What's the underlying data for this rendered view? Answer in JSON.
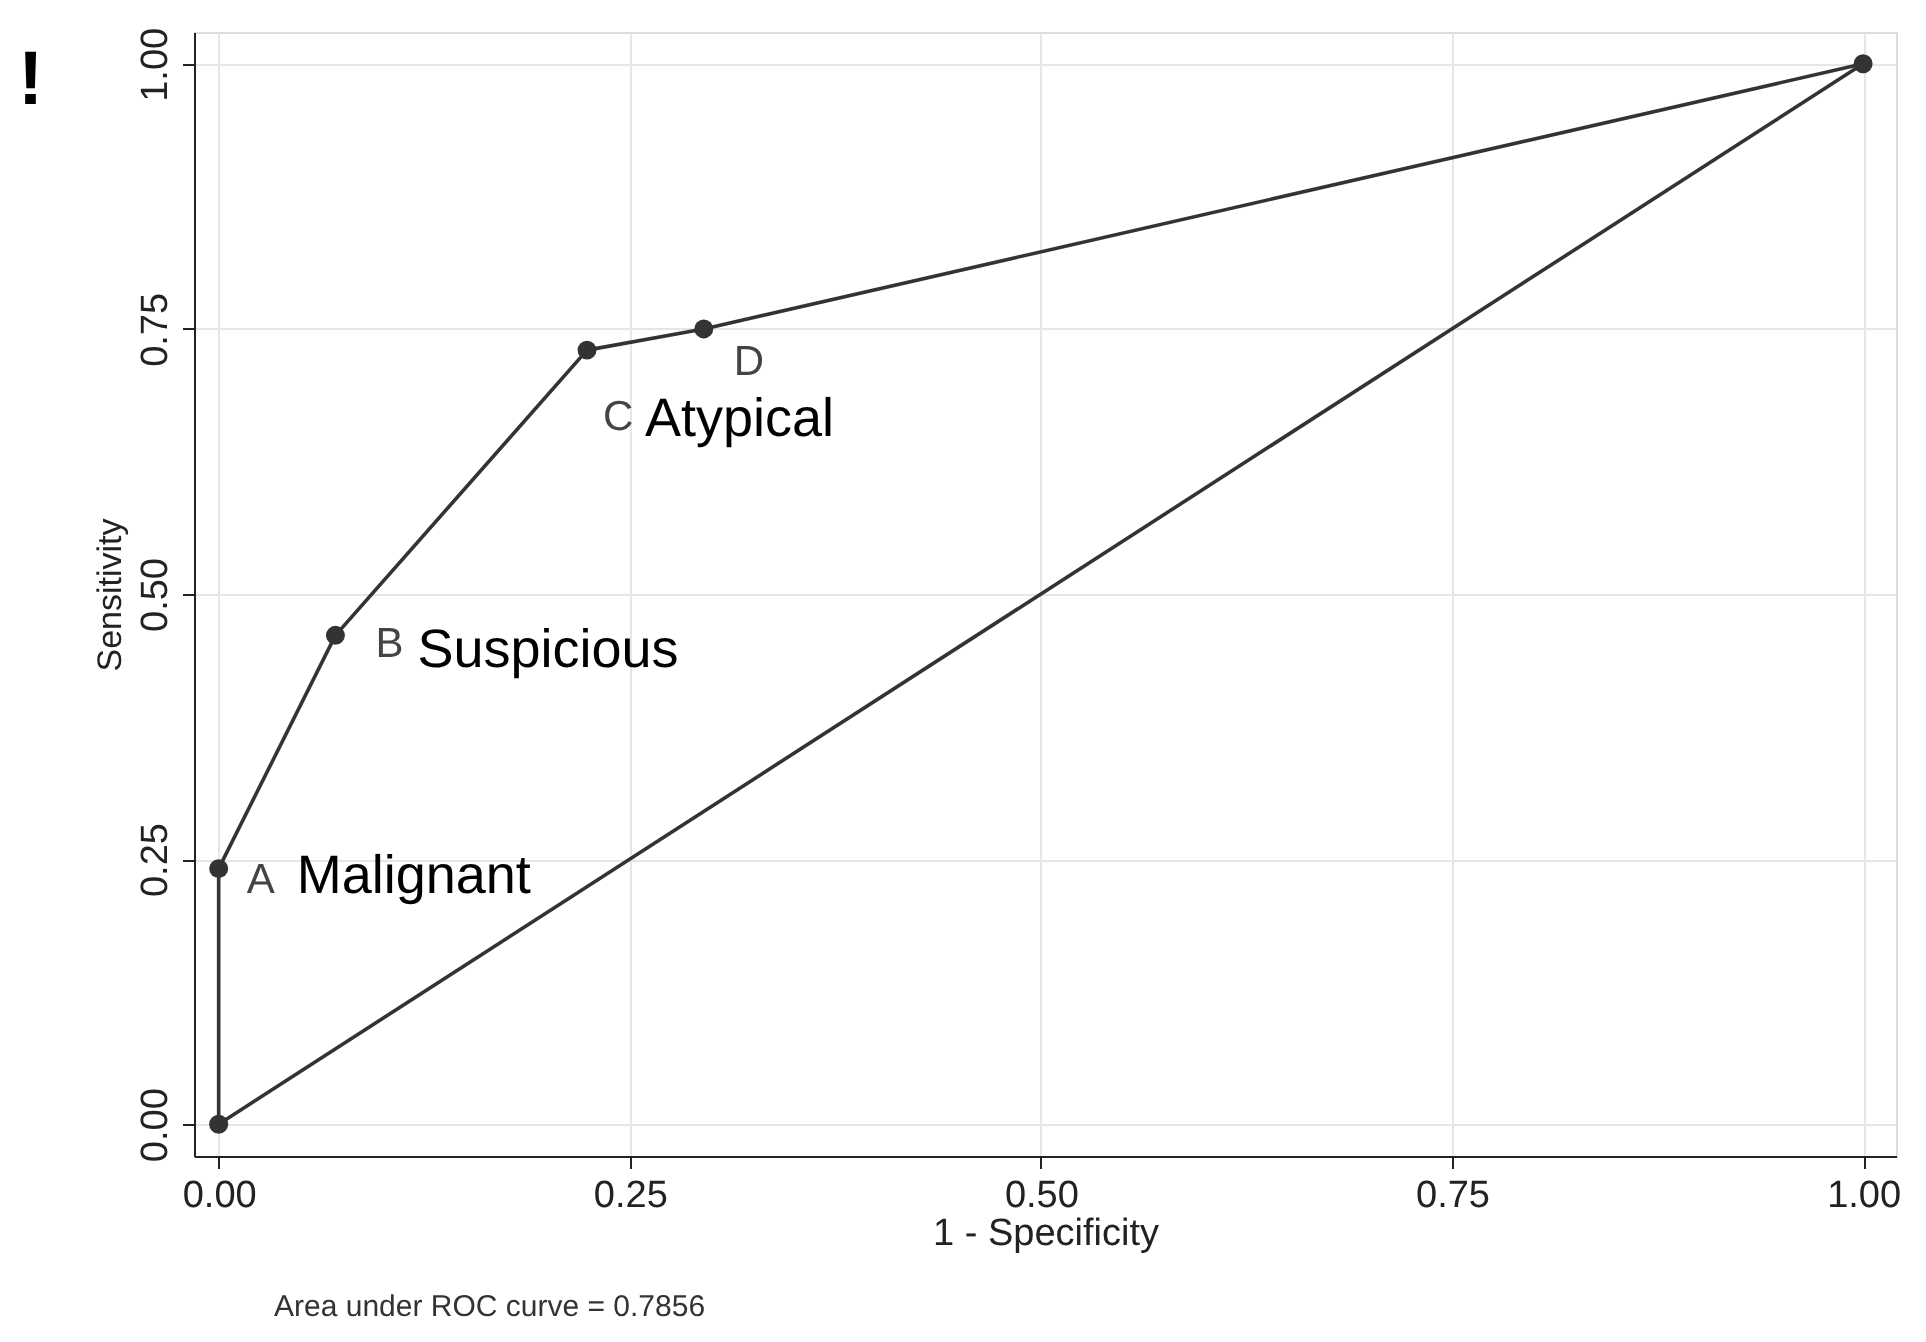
{
  "chart_data": {
    "type": "line",
    "xlabel": "1 - Specificity",
    "ylabel": "Sensitivity",
    "xlim": [
      -0.015,
      1.02
    ],
    "ylim": [
      -0.03,
      1.03
    ],
    "xticks": [
      {
        "value": 0,
        "label": "0.00"
      },
      {
        "value": 0.25,
        "label": "0.25"
      },
      {
        "value": 0.5,
        "label": "0.50"
      },
      {
        "value": 0.75,
        "label": "0.75"
      },
      {
        "value": 1,
        "label": "1.00"
      }
    ],
    "yticks": [
      {
        "value": 0,
        "label": "0.00"
      },
      {
        "value": 0.25,
        "label": "0.25"
      },
      {
        "value": 0.5,
        "label": "0.50"
      },
      {
        "value": 0.75,
        "label": "0.75"
      },
      {
        "value": 1,
        "label": "1.00"
      }
    ],
    "grid": true,
    "series": [
      {
        "color": "#333333",
        "marker": "circle",
        "x": [
          0,
          0,
          0.071,
          0.224,
          0.295,
          1
        ],
        "values": [
          0,
          0.241,
          0.461,
          0.73,
          0.75,
          1
        ]
      },
      {
        "color": "#333333",
        "marker": "none",
        "x": [
          0,
          1
        ],
        "values": [
          0,
          1
        ]
      }
    ],
    "annotations": [
      {
        "text": "A",
        "x": 0,
        "y": 0.241
      },
      {
        "text": "Malignant",
        "x": 0,
        "y": 0.241
      },
      {
        "text": "B",
        "x": 0.071,
        "y": 0.461
      },
      {
        "text": "Suspicious",
        "x": 0.071,
        "y": 0.461
      },
      {
        "text": "C",
        "x": 0.224,
        "y": 0.73
      },
      {
        "text": "Atypical",
        "x": 0.224,
        "y": 0.73
      },
      {
        "text": "D",
        "x": 0.295,
        "y": 0.75
      },
      "Area under ROC curve = 0.7856",
      "!"
    ]
  }
}
